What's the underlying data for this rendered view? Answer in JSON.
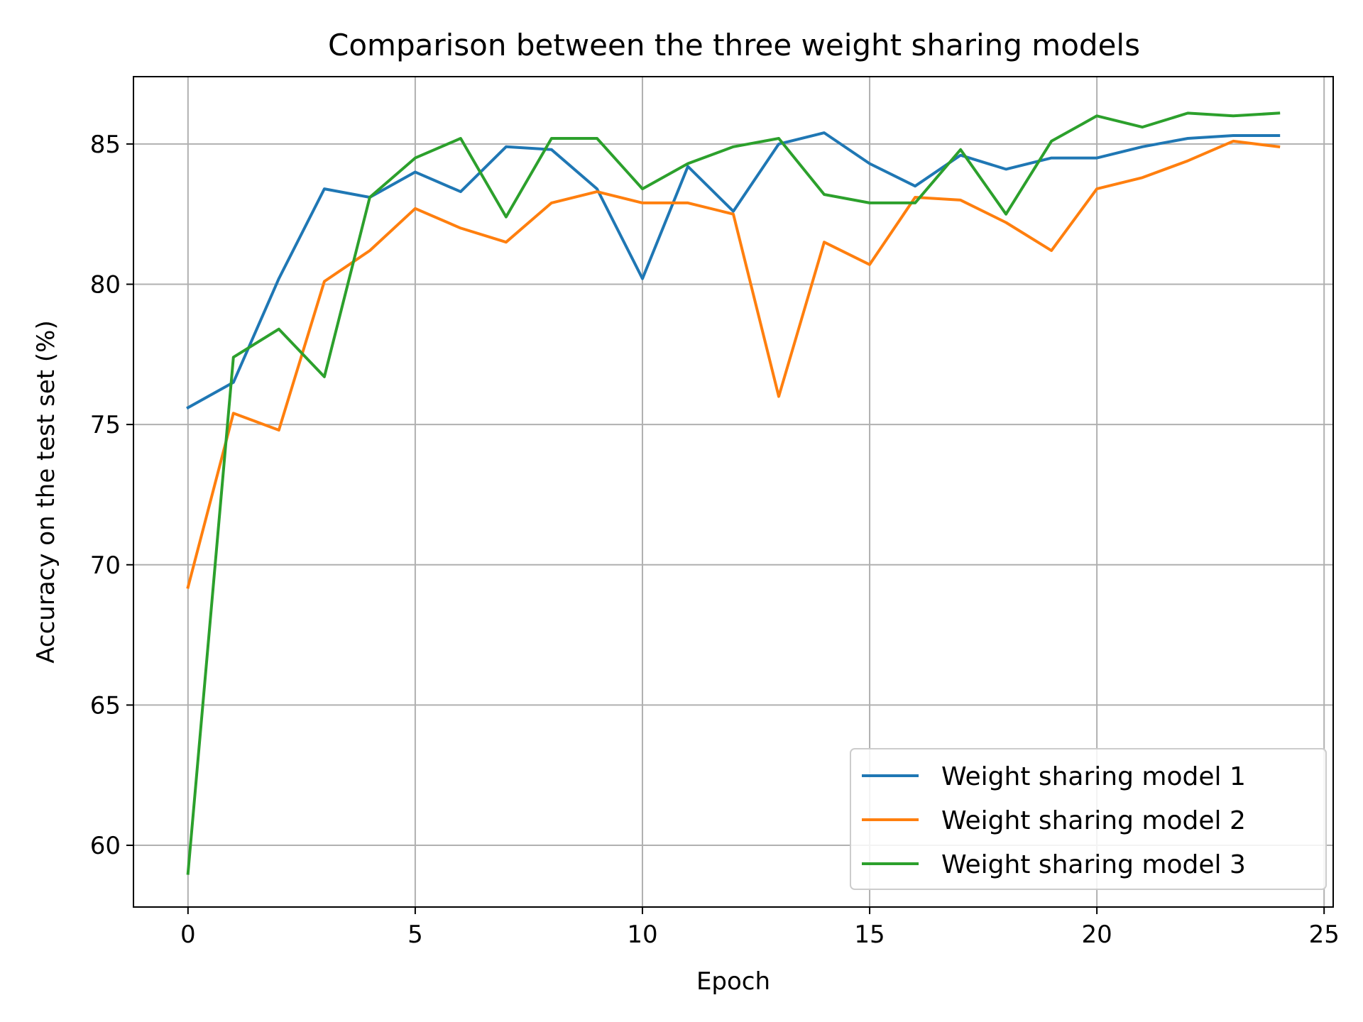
{
  "chart_data": {
    "type": "line",
    "title": "Comparison between the three weight sharing models",
    "xlabel": "Epoch",
    "ylabel": "Accuracy on the test set (%)",
    "xlim": [
      -1.2,
      25.2
    ],
    "ylim": [
      57.8,
      87.4
    ],
    "xticks": [
      0,
      5,
      10,
      15,
      20,
      25
    ],
    "yticks": [
      60,
      65,
      70,
      75,
      80,
      85
    ],
    "grid": true,
    "legend_position": "lower-right",
    "x": [
      0,
      1,
      2,
      3,
      4,
      5,
      6,
      7,
      8,
      9,
      10,
      11,
      12,
      13,
      14,
      15,
      16,
      17,
      18,
      19,
      20,
      21,
      22,
      23,
      24
    ],
    "series": [
      {
        "name": "Weight sharing model 1",
        "color": "#1f77b4",
        "values": [
          75.6,
          76.5,
          80.2,
          83.4,
          83.1,
          84.0,
          83.3,
          84.9,
          84.8,
          83.4,
          80.2,
          84.2,
          82.6,
          85.0,
          85.4,
          84.3,
          83.5,
          84.6,
          84.1,
          84.5,
          84.5,
          84.9,
          85.2,
          85.3,
          85.3
        ]
      },
      {
        "name": "Weight sharing model 2",
        "color": "#ff7f0e",
        "values": [
          69.2,
          75.4,
          74.8,
          80.1,
          81.2,
          82.7,
          82.0,
          81.5,
          82.9,
          83.3,
          82.9,
          82.9,
          82.5,
          76.0,
          81.5,
          80.7,
          83.1,
          83.0,
          82.2,
          81.2,
          83.4,
          83.8,
          84.4,
          85.1,
          84.9
        ]
      },
      {
        "name": "Weight sharing model 3",
        "color": "#2ca02c",
        "values": [
          59.0,
          77.4,
          78.4,
          76.7,
          83.1,
          84.5,
          85.2,
          82.4,
          85.2,
          85.2,
          83.4,
          84.3,
          84.9,
          85.2,
          83.2,
          82.9,
          82.9,
          84.8,
          82.5,
          85.1,
          86.0,
          85.6,
          86.1,
          86.0,
          86.1
        ]
      }
    ]
  }
}
